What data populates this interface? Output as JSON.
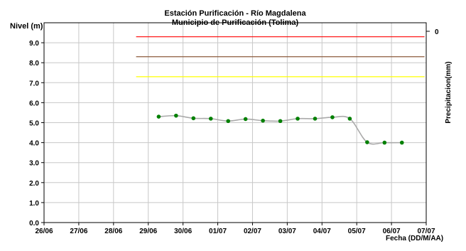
{
  "chart_data": {
    "type": "line",
    "title": "Estación Purificación - Río Magdalena",
    "subtitle": "Municipio de Purificación (Tolima)",
    "ylabel": "Nivel (m)",
    "y2label": "Precipitacion(mm)",
    "xlabel": "Fecha (DD/M/AA)",
    "ylim": [
      0,
      10
    ],
    "yticks": [
      "0.0",
      "1.0",
      "2.0",
      "3.0",
      "4.0",
      "5.0",
      "6.0",
      "7.0",
      "8.0",
      "9.0"
    ],
    "y2_tick": "0",
    "xlim": [
      0,
      11
    ],
    "x_categories": [
      "26/06",
      "27/06",
      "28/06",
      "29/06",
      "30/06",
      "01/07",
      "02/07",
      "03/07",
      "04/07",
      "05/07",
      "06/07",
      "07/07"
    ],
    "grid": true,
    "thresholds": [
      {
        "level": 9.3,
        "color": "#ff0000",
        "x_start": 2.65,
        "x_end": 10.95
      },
      {
        "level": 8.3,
        "color": "#8b5a3c",
        "x_start": 2.65,
        "x_end": 10.95
      },
      {
        "level": 7.3,
        "color": "#ffff00",
        "x_start": 2.65,
        "x_end": 10.95
      }
    ],
    "series": [
      {
        "line_color": "#aaaaaa",
        "marker_color": "#008000",
        "x": [
          3.3,
          3.8,
          4.3,
          4.8,
          5.3,
          5.8,
          6.3,
          6.8,
          7.3,
          7.8,
          8.3,
          8.8,
          9.3,
          9.8,
          10.3
        ],
        "y": [
          5.3,
          5.35,
          5.22,
          5.2,
          5.08,
          5.18,
          5.1,
          5.08,
          5.2,
          5.2,
          5.27,
          5.2,
          4.02,
          4.0,
          4.0
        ]
      }
    ]
  }
}
